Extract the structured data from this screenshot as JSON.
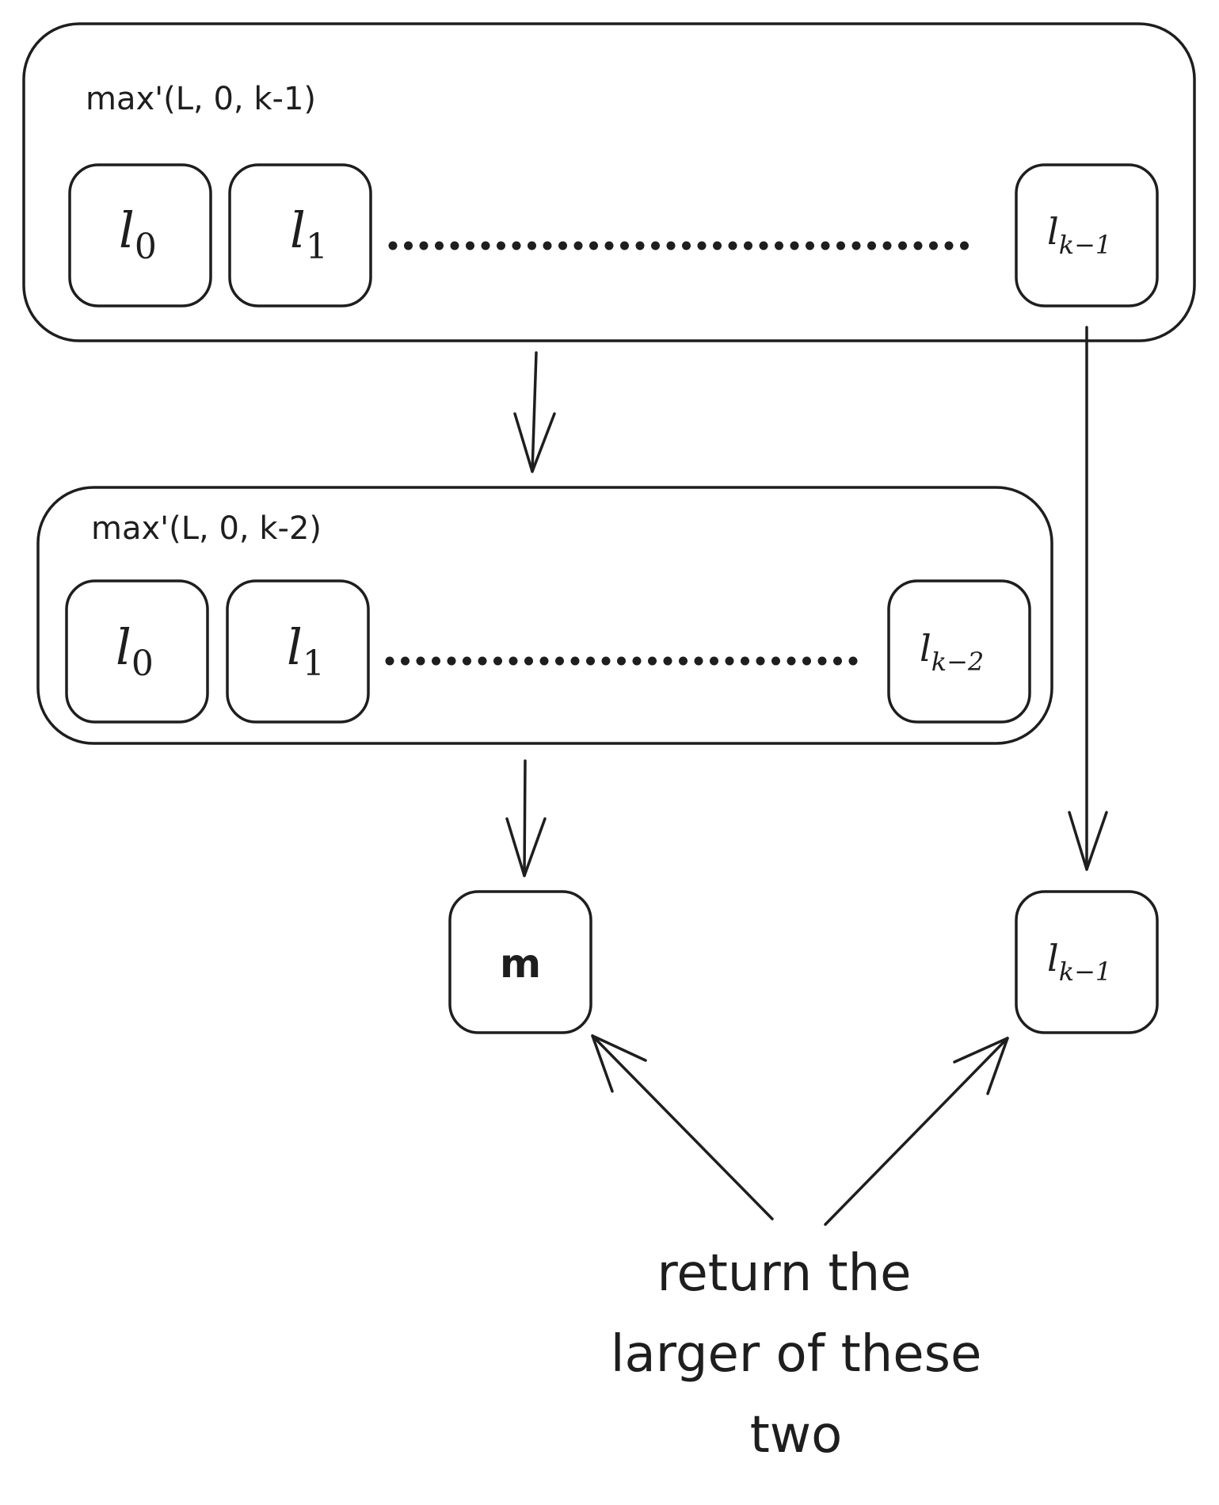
{
  "outer_box": {
    "label": "max'(L, 0, k-1)",
    "cells": [
      {
        "var": "l",
        "sub": "0"
      },
      {
        "var": "l",
        "sub": "1"
      },
      {
        "var": "l",
        "sub": "k−1"
      }
    ]
  },
  "inner_box": {
    "label": "max'(L, 0, k-2)",
    "cells": [
      {
        "var": "l",
        "sub": "0"
      },
      {
        "var": "l",
        "sub": "1"
      },
      {
        "var": "l",
        "sub": "k−2"
      }
    ]
  },
  "result_m": {
    "label": "m"
  },
  "result_last": {
    "var": "l",
    "sub": "k−1"
  },
  "caption": {
    "line1": "return the",
    "line2": "larger of these",
    "line3": "two"
  }
}
